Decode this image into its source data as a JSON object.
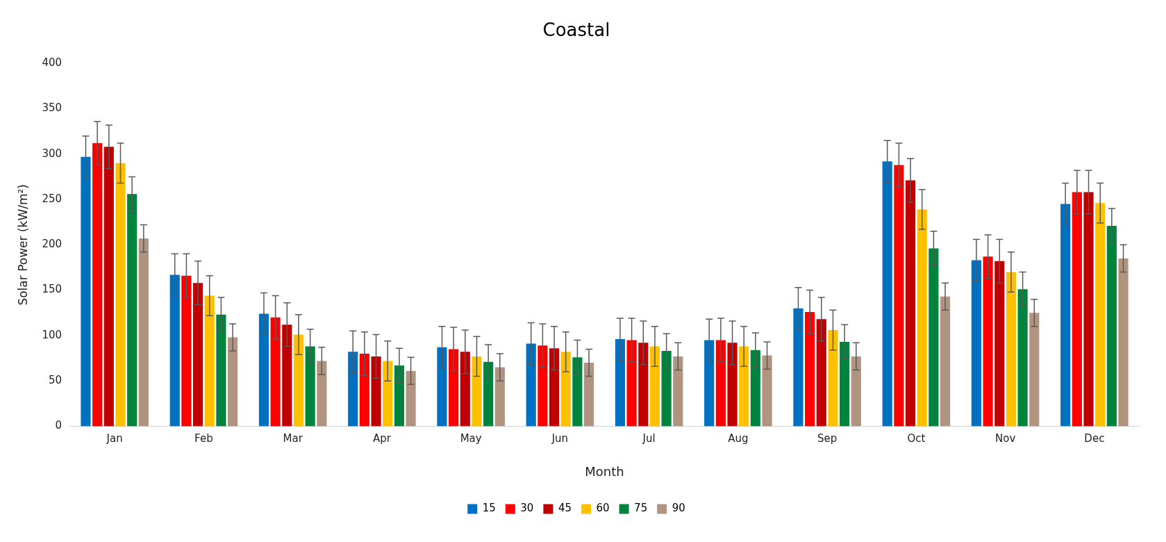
{
  "chart_data": {
    "type": "bar",
    "title": "Coastal",
    "xlabel": "Month",
    "ylabel": "Solar Power (kW/m²)",
    "categories": [
      "Jan",
      "Feb",
      "Mar",
      "Apr",
      "May",
      "Jun",
      "Jul",
      "Aug",
      "Sep",
      "Oct",
      "Nov",
      "Dec"
    ],
    "series": [
      {
        "name": "15",
        "color": "#0070c0",
        "values": [
          297,
          167,
          124,
          82,
          87,
          91,
          96,
          95,
          130,
          292,
          183,
          245
        ],
        "errors": [
          23,
          23,
          23,
          23,
          23,
          23,
          23,
          23,
          23,
          23,
          23,
          23
        ]
      },
      {
        "name": "30",
        "color": "#ff0000",
        "values": [
          312,
          166,
          120,
          80,
          85,
          89,
          95,
          95,
          126,
          288,
          187,
          258
        ],
        "errors": [
          24,
          24,
          24,
          24,
          24,
          24,
          24,
          24,
          24,
          24,
          24,
          24
        ]
      },
      {
        "name": "45",
        "color": "#c00000",
        "values": [
          308,
          158,
          112,
          77,
          82,
          86,
          92,
          92,
          118,
          271,
          182,
          258
        ],
        "errors": [
          24,
          24,
          24,
          24,
          24,
          24,
          24,
          24,
          24,
          24,
          24,
          24
        ]
      },
      {
        "name": "60",
        "color": "#ffc000",
        "values": [
          290,
          144,
          101,
          72,
          77,
          82,
          88,
          88,
          106,
          239,
          170,
          246
        ],
        "errors": [
          22,
          22,
          22,
          22,
          22,
          22,
          22,
          22,
          22,
          22,
          22,
          22
        ]
      },
      {
        "name": "75",
        "color": "#00843d",
        "values": [
          256,
          123,
          88,
          67,
          71,
          76,
          83,
          84,
          93,
          196,
          151,
          221
        ],
        "errors": [
          19,
          19,
          19,
          19,
          19,
          19,
          19,
          19,
          19,
          19,
          19,
          19
        ]
      },
      {
        "name": "90",
        "color": "#b09480",
        "values": [
          207,
          98,
          72,
          61,
          65,
          70,
          77,
          78,
          77,
          143,
          125,
          185
        ],
        "errors": [
          15,
          15,
          15,
          15,
          15,
          15,
          15,
          15,
          15,
          15,
          15,
          15
        ]
      }
    ],
    "ylim": [
      0,
      400
    ],
    "yticks": [
      0,
      50,
      100,
      150,
      200,
      250,
      300,
      350,
      400
    ],
    "grid": false,
    "legend": "bottom"
  }
}
